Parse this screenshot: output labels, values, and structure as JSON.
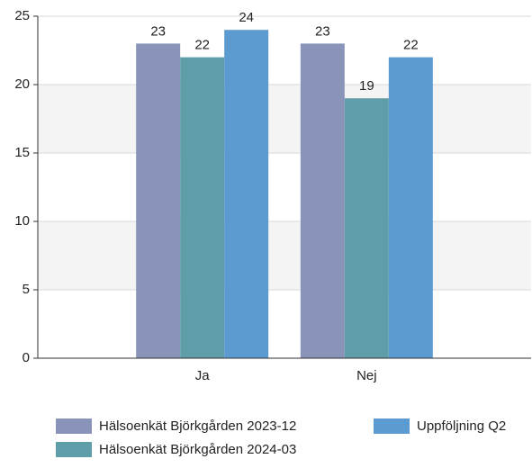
{
  "chart_data": {
    "type": "bar",
    "categories": [
      "Ja",
      "Nej"
    ],
    "series": [
      {
        "name": "Hälsoenkät Björkgården 2023-12",
        "color": "#8a94b8",
        "values": [
          23,
          23
        ]
      },
      {
        "name": "Hälsoenkät Björkgården 2024-03",
        "color": "#5f9ea8",
        "values": [
          22,
          19
        ]
      },
      {
        "name": "Uppföljning Q2",
        "color": "#5b9bd0",
        "values": [
          24,
          22
        ]
      }
    ],
    "ylim": [
      0,
      25
    ],
    "yticks": [
      0,
      5,
      10,
      15,
      20,
      25
    ],
    "grid": true,
    "alternate_bands": true,
    "legend": "bottom"
  }
}
